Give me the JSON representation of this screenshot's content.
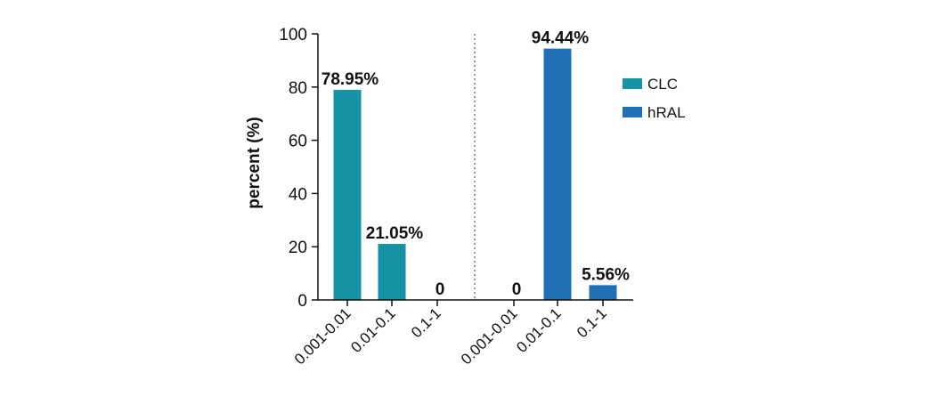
{
  "chart_data": {
    "type": "bar",
    "ylabel": "percent (%)",
    "xlabel": "",
    "title": "",
    "ylim": [
      0,
      100
    ],
    "yticks": [
      0,
      20,
      40,
      60,
      80,
      100
    ],
    "grid": false,
    "legend_placement": "right",
    "series": [
      {
        "name": "CLC",
        "color": "#1693a5",
        "categories": [
          "0.001-0.01",
          "0.01-0.1",
          "0.1-1"
        ],
        "values": [
          78.95,
          21.05,
          0
        ],
        "labels": [
          "78.95%",
          "21.05%",
          "0"
        ]
      },
      {
        "name": "hRAL",
        "color": "#1f70b5",
        "categories": [
          "0.001-0.01",
          "0.01-0.1",
          "0.1-1"
        ],
        "values": [
          0,
          94.44,
          5.56
        ],
        "labels": [
          "0",
          "94.44%",
          "5.56%"
        ]
      }
    ]
  }
}
